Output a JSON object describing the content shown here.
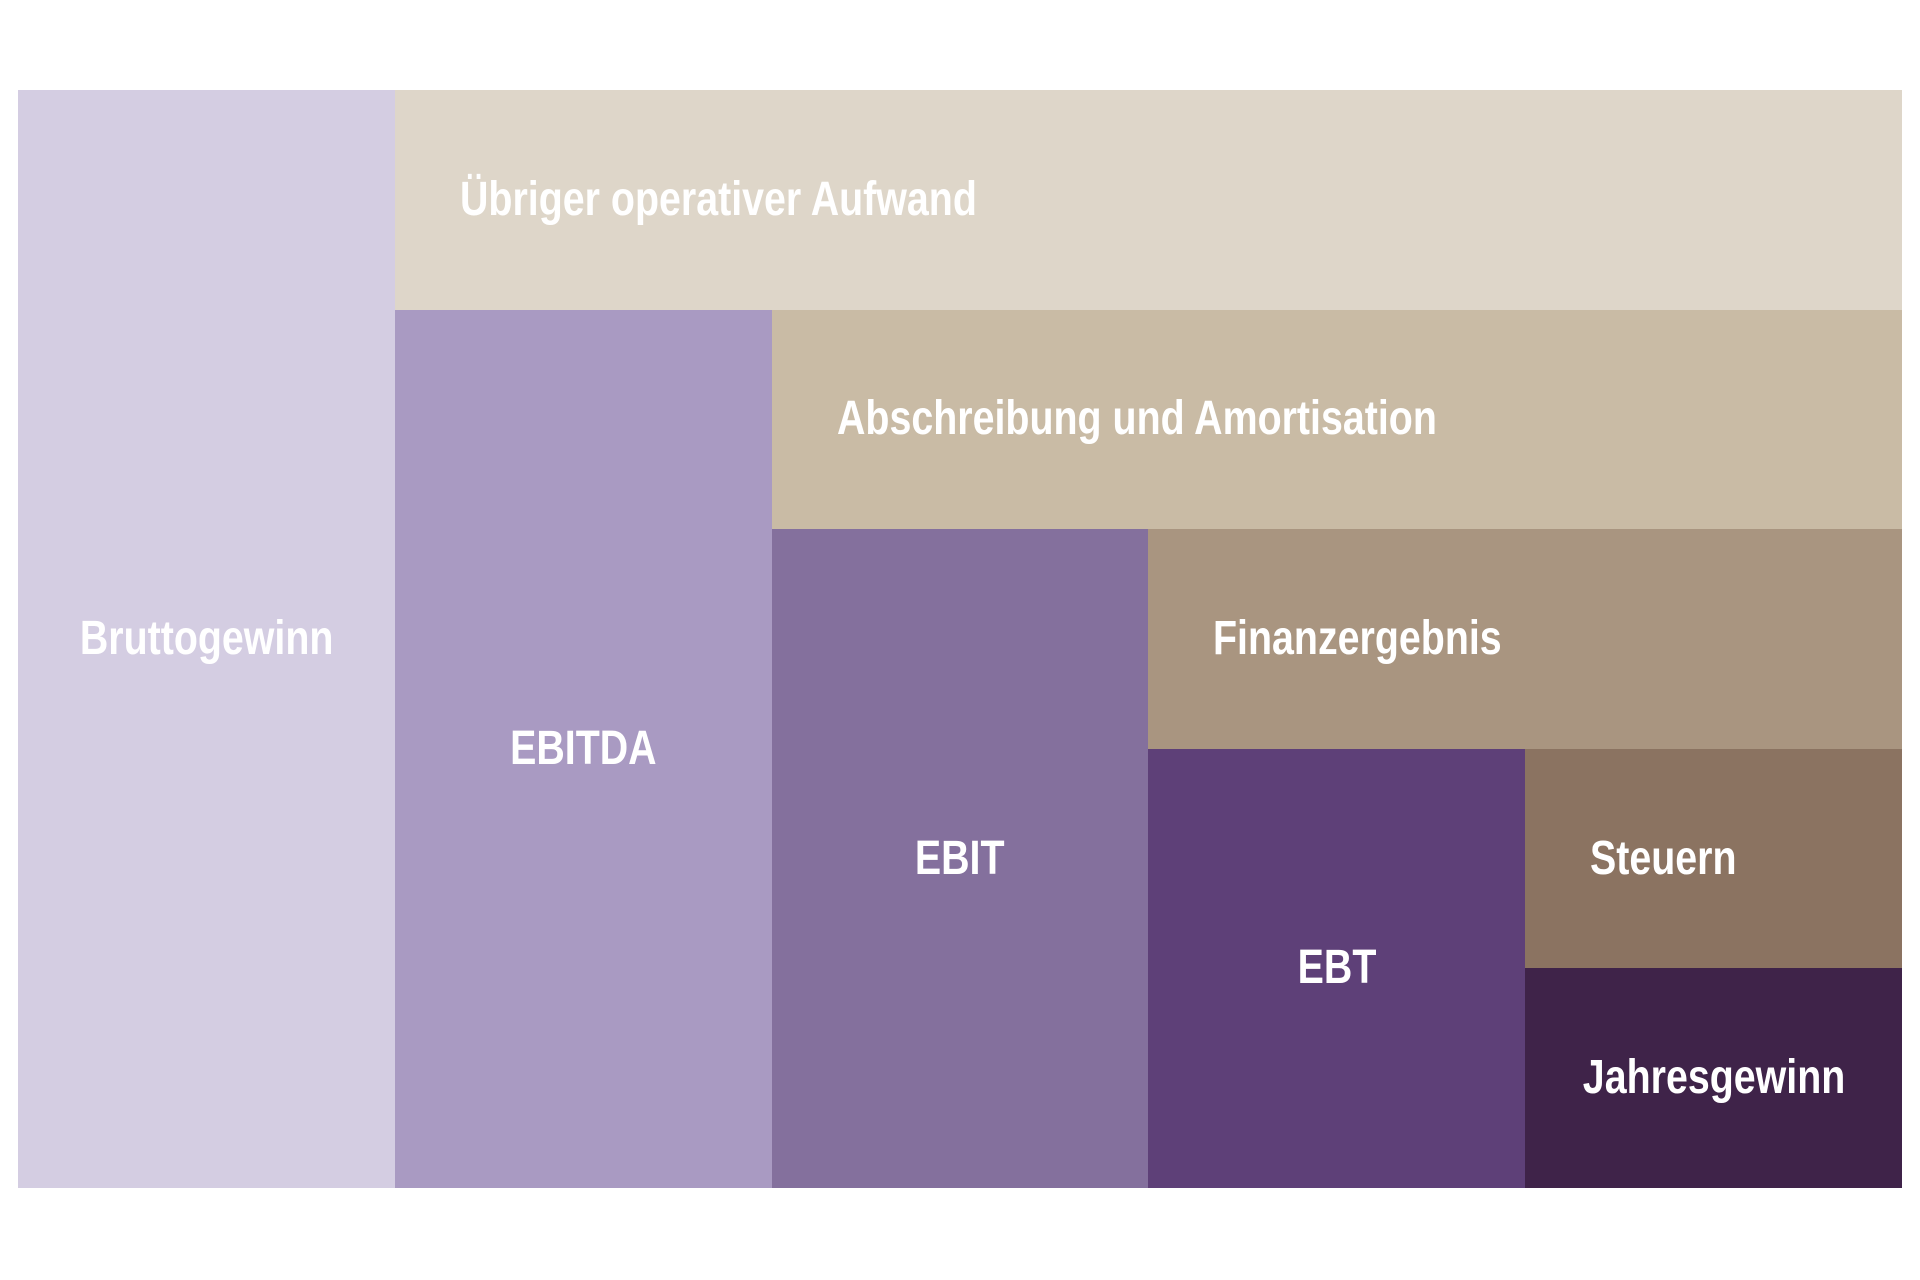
{
  "background_color": "#ffffff",
  "label_text_color": "#ffffff",
  "grid": {
    "columns": 5,
    "bands": 5
  },
  "blocks": [
    {
      "id": "bruttogewinn",
      "label": "Bruttogewinn",
      "type": "level",
      "color": "#d4cde2",
      "col": 0,
      "colspan": 1,
      "band": 0,
      "bandspan": 5,
      "align": "center"
    },
    {
      "id": "uebriger-operativer-aufwand",
      "label": "Übriger operativer Aufwand",
      "type": "expense",
      "color": "#ded6c9",
      "col": 1,
      "colspan": 4,
      "band": 0,
      "bandspan": 1,
      "align": "left"
    },
    {
      "id": "ebitda",
      "label": "EBITDA",
      "type": "level",
      "color": "#a99ac2",
      "col": 1,
      "colspan": 1,
      "band": 1,
      "bandspan": 4,
      "align": "center"
    },
    {
      "id": "abschreibung-und-amortisation",
      "label": "Abschreibung und Amortisation",
      "type": "expense",
      "color": "#c9bba5",
      "col": 2,
      "colspan": 3,
      "band": 1,
      "bandspan": 1,
      "align": "left"
    },
    {
      "id": "ebit",
      "label": "EBIT",
      "type": "level",
      "color": "#84709d",
      "col": 2,
      "colspan": 1,
      "band": 2,
      "bandspan": 3,
      "align": "center"
    },
    {
      "id": "finanzergebnis",
      "label": "Finanzergebnis",
      "type": "expense",
      "color": "#a99580",
      "col": 3,
      "colspan": 2,
      "band": 2,
      "bandspan": 1,
      "align": "left"
    },
    {
      "id": "ebt",
      "label": "EBT",
      "type": "level",
      "color": "#5e4078",
      "col": 3,
      "colspan": 1,
      "band": 3,
      "bandspan": 2,
      "align": "center"
    },
    {
      "id": "steuern",
      "label": "Steuern",
      "type": "expense",
      "color": "#8b7361",
      "col": 4,
      "colspan": 1,
      "band": 3,
      "bandspan": 1,
      "align": "left"
    },
    {
      "id": "jahresgewinn",
      "label": "Jahresgewinn",
      "type": "level",
      "color": "#3f2349",
      "col": 4,
      "colspan": 1,
      "band": 4,
      "bandspan": 1,
      "align": "center"
    }
  ]
}
